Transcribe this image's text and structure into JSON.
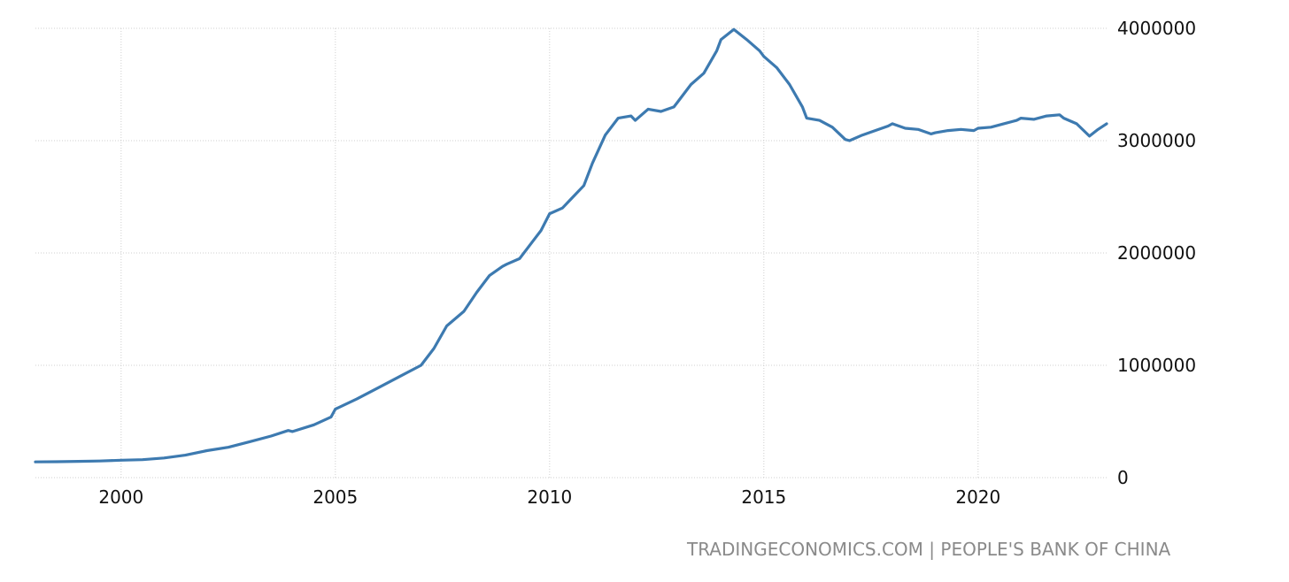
{
  "colors": {
    "series": "#3d7ab0",
    "grid": "#cfcfcf",
    "tick_text": "#111111",
    "source_text": "#8a8a8a"
  },
  "source": {
    "left": "TRADINGECONOMICS.COM",
    "separator": "|",
    "right": "PEOPLE'S BANK OF CHINA"
  },
  "chart_data": {
    "type": "line",
    "title": "",
    "xlabel": "",
    "ylabel": "",
    "xlim": [
      1998.0,
      2023.0
    ],
    "ylim": [
      0,
      4000000
    ],
    "grid": true,
    "legend": "none",
    "y_axis_side": "right",
    "x_ticks": [
      "2000",
      "2005",
      "2010",
      "2015",
      "2020"
    ],
    "y_ticks": [
      "0",
      "1000000",
      "2000000",
      "3000000",
      "4000000"
    ],
    "series": [
      {
        "x": [
          1998.0,
          1998.5,
          1999.0,
          1999.5,
          2000.0,
          2000.5,
          2001.0,
          2001.5,
          2002.0,
          2002.5,
          2003.0,
          2003.5,
          2003.9,
          2004.0,
          2004.5,
          2004.9,
          2005.0,
          2005.5,
          2006.0,
          2006.5,
          2007.0,
          2007.3,
          2007.6,
          2008.0,
          2008.3,
          2008.6,
          2008.9,
          2009.0,
          2009.3,
          2009.6,
          2009.8,
          2010.0,
          2010.3,
          2010.5,
          2010.8,
          2011.0,
          2011.3,
          2011.6,
          2011.9,
          2012.0,
          2012.3,
          2012.6,
          2012.9,
          2013.0,
          2013.3,
          2013.6,
          2013.9,
          2014.0,
          2014.3,
          2014.6,
          2014.9,
          2015.0,
          2015.3,
          2015.6,
          2015.9,
          2016.0,
          2016.3,
          2016.6,
          2016.9,
          2017.0,
          2017.3,
          2017.6,
          2017.9,
          2018.0,
          2018.3,
          2018.6,
          2018.9,
          2019.0,
          2019.3,
          2019.6,
          2019.9,
          2020.0,
          2020.3,
          2020.6,
          2020.9,
          2021.0,
          2021.3,
          2021.6,
          2021.9,
          2022.0,
          2022.3,
          2022.6,
          2022.8,
          2023.0
        ],
        "values": [
          140000,
          142000,
          145000,
          148000,
          155000,
          160000,
          175000,
          200000,
          240000,
          270000,
          320000,
          370000,
          420000,
          410000,
          470000,
          540000,
          610000,
          700000,
          800000,
          900000,
          1000000,
          1150000,
          1350000,
          1480000,
          1650000,
          1800000,
          1880000,
          1900000,
          1950000,
          2100000,
          2200000,
          2350000,
          2400000,
          2480000,
          2600000,
          2800000,
          3050000,
          3200000,
          3220000,
          3180000,
          3280000,
          3260000,
          3300000,
          3350000,
          3500000,
          3600000,
          3800000,
          3900000,
          3990000,
          3900000,
          3800000,
          3750000,
          3650000,
          3500000,
          3300000,
          3200000,
          3180000,
          3120000,
          3010000,
          3000000,
          3050000,
          3090000,
          3130000,
          3150000,
          3110000,
          3100000,
          3060000,
          3070000,
          3090000,
          3100000,
          3090000,
          3110000,
          3120000,
          3150000,
          3180000,
          3200000,
          3190000,
          3220000,
          3230000,
          3200000,
          3150000,
          3040000,
          3100000,
          3150000
        ]
      }
    ]
  }
}
